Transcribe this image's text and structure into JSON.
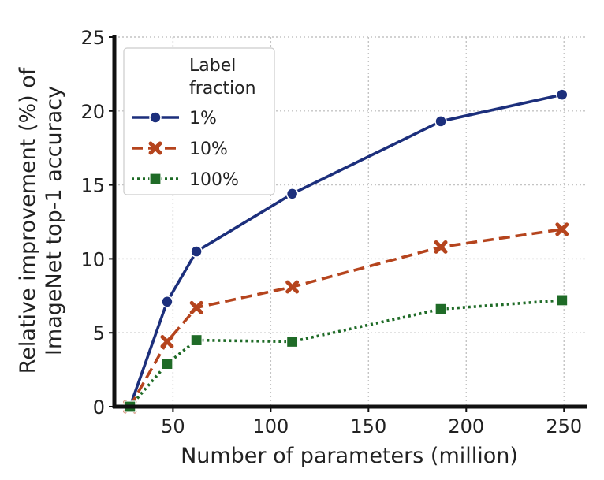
{
  "chart_data": {
    "type": "line",
    "xlabel": "Number of parameters (million)",
    "ylabel": [
      "Relative improvement (%) of",
      "ImageNet top-1 accuracy"
    ],
    "xlim": [
      20,
      262
    ],
    "ylim": [
      0,
      25
    ],
    "xticks": [
      50,
      100,
      150,
      200,
      250
    ],
    "yticks": [
      0,
      5,
      10,
      15,
      20,
      25
    ],
    "grid": true,
    "legend": {
      "title": [
        "Label",
        "fraction"
      ],
      "placement": "top-left"
    },
    "series": [
      {
        "name": "1%",
        "color": "#1c2f7c",
        "dash": "solid",
        "marker": "circle",
        "x": [
          28,
          47,
          62,
          111,
          187,
          249
        ],
        "y": [
          0,
          7.1,
          10.5,
          14.4,
          19.3,
          21.1
        ]
      },
      {
        "name": "10%",
        "color": "#b5441d",
        "dash": "dashed",
        "marker": "x",
        "x": [
          28,
          47,
          62,
          111,
          187,
          249
        ],
        "y": [
          0,
          4.4,
          6.7,
          8.1,
          10.8,
          12.0
        ]
      },
      {
        "name": "100%",
        "color": "#1f6b27",
        "dash": "dotted",
        "marker": "square",
        "x": [
          28,
          47,
          62,
          111,
          187,
          249
        ],
        "y": [
          0,
          2.9,
          4.5,
          4.4,
          6.6,
          7.2
        ]
      }
    ]
  }
}
